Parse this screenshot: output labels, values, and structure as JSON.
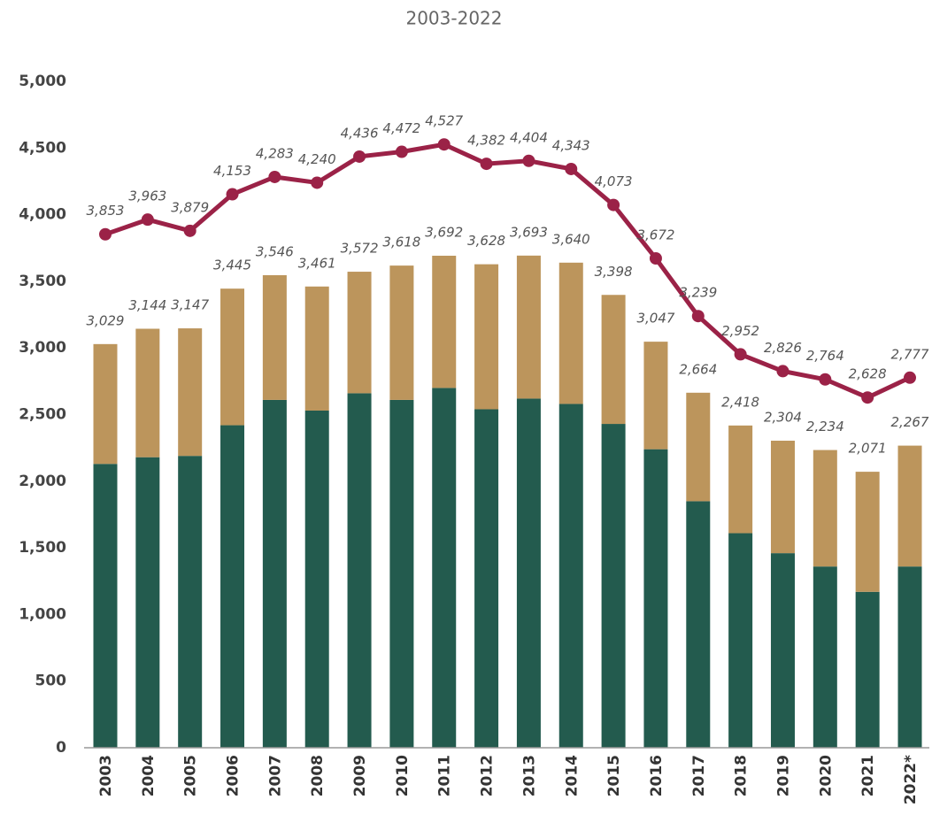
{
  "chart_data": {
    "type": "stacked-bar-line",
    "title": "2003-2022",
    "categories": [
      "2003",
      "2004",
      "2005",
      "2006",
      "2007",
      "2008",
      "2009",
      "2010",
      "2011",
      "2012",
      "2013",
      "2014",
      "2015",
      "2016",
      "2017",
      "2018",
      "2019",
      "2020",
      "2021",
      "2022*"
    ],
    "series": [
      {
        "color": "#235b4e",
        "values": [
          2130,
          2180,
          2190,
          2420,
          2610,
          2530,
          2660,
          2610,
          2700,
          2540,
          2620,
          2580,
          2430,
          2240,
          1850,
          1610,
          1460,
          1360,
          1170,
          1360
        ]
      },
      {
        "color": "#bc955c",
        "values": [
          899,
          964,
          957,
          1025,
          936,
          931,
          912,
          1008,
          992,
          1088,
          1073,
          1060,
          968,
          807,
          814,
          808,
          844,
          874,
          901,
          907
        ]
      }
    ],
    "totals": {
      "values": [
        3029,
        3144,
        3147,
        3445,
        3546,
        3461,
        3572,
        3618,
        3692,
        3628,
        3693,
        3640,
        3398,
        3047,
        2664,
        2418,
        2304,
        2234,
        2071,
        2267
      ],
      "value_labels": [
        "3,029",
        "3,144",
        "3,147",
        "3,445",
        "3,546",
        "3,461",
        "3,572",
        "3,618",
        "3,692",
        "3,628",
        "3,693",
        "3,640",
        "3,398",
        "3,047",
        "2,664",
        "2,418",
        "2,304",
        "2,234",
        "2,071",
        "2,267"
      ]
    },
    "line": {
      "color": "#9b2247",
      "values": [
        3853,
        3963,
        3879,
        4153,
        4283,
        4240,
        4436,
        4472,
        4527,
        4382,
        4404,
        4343,
        4073,
        3672,
        3239,
        2952,
        2826,
        2764,
        2628,
        2777
      ],
      "value_labels": [
        "3,853",
        "3,963",
        "3,879",
        "4,153",
        "4,283",
        "4,240",
        "4,436",
        "4,472",
        "4,527",
        "4,382",
        "4,404",
        "4,343",
        "4,073",
        "3,672",
        "3,239",
        "2,952",
        "2,826",
        "2,764",
        "2,628",
        "2,777"
      ]
    },
    "ylim": [
      0,
      5000
    ],
    "yticks": [
      0,
      500,
      {
        "value": 1000,
        "label": "1,000"
      },
      {
        "value": 1500,
        "label": "1,500"
      },
      {
        "value": 2000,
        "label": "2,000"
      },
      {
        "value": 2500,
        "label": "2,500"
      },
      {
        "value": 3000,
        "label": "3,000"
      },
      {
        "value": 3500,
        "label": "3,500"
      },
      {
        "value": 4000,
        "label": "4,000"
      },
      {
        "value": 4500,
        "label": "4,500"
      },
      {
        "value": 5000,
        "label": "5,000"
      }
    ],
    "grid": false
  }
}
